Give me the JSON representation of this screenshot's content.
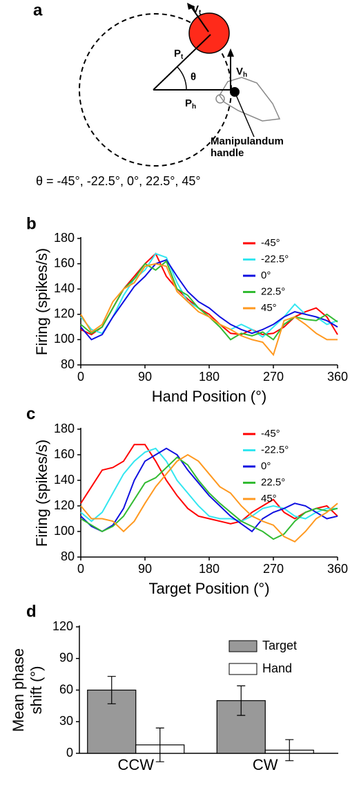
{
  "diagram": {
    "panel_label": "a",
    "vt": {
      "main": "V",
      "sub": "t"
    },
    "pt": {
      "main": "P",
      "sub": "t"
    },
    "theta": "θ",
    "vh": {
      "main": "V",
      "sub": "h"
    },
    "ph": {
      "main": "P",
      "sub": "h"
    },
    "handle_label": [
      "Manipulandum",
      "handle"
    ],
    "caption": "θ = -45°, -22.5°, 0°, 22.5°, 45°"
  },
  "chart_data": [
    {
      "type": "line",
      "panel_label": "b",
      "x_label": "Hand Position (°)",
      "y_label": "Firing (spikes/s)",
      "x": [
        0,
        15,
        30,
        45,
        60,
        75,
        90,
        105,
        120,
        135,
        150,
        165,
        180,
        195,
        210,
        225,
        240,
        255,
        270,
        285,
        300,
        315,
        330,
        345,
        360
      ],
      "xlim": [
        0,
        360
      ],
      "xticks": [
        0,
        90,
        180,
        270,
        360
      ],
      "ylim": [
        80,
        180
      ],
      "yticks": [
        80,
        100,
        120,
        140,
        160,
        180
      ],
      "series": [
        {
          "name": "-45°",
          "color": "#ff0000",
          "values": [
            108,
            104,
            110,
            125,
            140,
            150,
            160,
            168,
            150,
            140,
            132,
            125,
            120,
            112,
            105,
            104,
            108,
            104,
            105,
            110,
            118,
            122,
            125,
            118,
            104
          ]
        },
        {
          "name": "-22.5°",
          "color": "#33e6f0",
          "values": [
            118,
            108,
            105,
            118,
            135,
            148,
            155,
            168,
            165,
            145,
            130,
            125,
            118,
            112,
            108,
            112,
            108,
            102,
            110,
            118,
            128,
            120,
            118,
            112,
            115
          ]
        },
        {
          "name": "0°",
          "color": "#1010e0",
          "values": [
            110,
            100,
            104,
            118,
            130,
            142,
            150,
            160,
            163,
            150,
            138,
            130,
            125,
            118,
            112,
            108,
            105,
            108,
            112,
            118,
            122,
            120,
            118,
            115,
            110
          ]
        },
        {
          "name": "22.5°",
          "color": "#33bb33",
          "values": [
            112,
            105,
            110,
            125,
            140,
            148,
            160,
            155,
            162,
            140,
            135,
            125,
            118,
            110,
            100,
            105,
            103,
            106,
            100,
            112,
            118,
            116,
            115,
            120,
            114
          ]
        },
        {
          "name": "45°",
          "color": "#ff9920",
          "values": [
            120,
            106,
            112,
            130,
            140,
            145,
            158,
            160,
            158,
            138,
            130,
            122,
            118,
            112,
            108,
            103,
            100,
            98,
            88,
            115,
            118,
            112,
            105,
            100,
            100
          ]
        }
      ]
    },
    {
      "type": "line",
      "panel_label": "c",
      "x_label": "Target Position (°)",
      "y_label": "Firing (spikes/s)",
      "x": [
        0,
        15,
        30,
        45,
        60,
        75,
        90,
        105,
        120,
        135,
        150,
        165,
        180,
        195,
        210,
        225,
        240,
        255,
        270,
        285,
        300,
        315,
        330,
        345,
        360
      ],
      "xlim": [
        0,
        360
      ],
      "xticks": [
        0,
        90,
        180,
        270,
        360
      ],
      "ylim": [
        80,
        180
      ],
      "yticks": [
        80,
        100,
        120,
        140,
        160,
        180
      ],
      "series": [
        {
          "name": "-45°",
          "color": "#ff0000",
          "values": [
            122,
            135,
            148,
            150,
            155,
            168,
            168,
            155,
            140,
            128,
            118,
            112,
            110,
            108,
            106,
            108,
            115,
            120,
            125,
            115,
            110,
            115,
            118,
            120,
            112
          ]
        },
        {
          "name": "-22.5°",
          "color": "#33e6f0",
          "values": [
            115,
            108,
            115,
            130,
            145,
            155,
            162,
            165,
            155,
            140,
            130,
            120,
            112,
            110,
            110,
            108,
            112,
            118,
            120,
            118,
            112,
            110,
            115,
            118,
            118
          ]
        },
        {
          "name": "0°",
          "color": "#1010e0",
          "values": [
            112,
            104,
            100,
            105,
            118,
            140,
            155,
            160,
            165,
            160,
            148,
            138,
            128,
            120,
            112,
            106,
            100,
            110,
            115,
            118,
            122,
            120,
            115,
            110,
            112
          ]
        },
        {
          "name": "22.5°",
          "color": "#33bb33",
          "values": [
            110,
            105,
            100,
            104,
            112,
            125,
            138,
            142,
            150,
            158,
            152,
            140,
            130,
            122,
            115,
            108,
            104,
            100,
            94,
            98,
            108,
            115,
            118,
            116,
            118
          ]
        },
        {
          "name": "45°",
          "color": "#ff9920",
          "values": [
            120,
            110,
            110,
            108,
            100,
            108,
            122,
            135,
            145,
            155,
            160,
            155,
            145,
            135,
            130,
            120,
            112,
            108,
            105,
            96,
            92,
            100,
            110,
            115,
            122
          ]
        }
      ]
    },
    {
      "type": "bar",
      "panel_label": "d",
      "y_label": [
        "Mean phase",
        "shift (°)"
      ],
      "categories": [
        "CCW",
        "CW"
      ],
      "ylim": [
        0,
        120
      ],
      "yticks": [
        0,
        30,
        60,
        90,
        120
      ],
      "series": [
        {
          "name": "Target",
          "color": "#999999",
          "values": [
            60,
            50
          ],
          "errors": [
            13,
            14
          ]
        },
        {
          "name": "Hand",
          "color": "#ffffff",
          "values": [
            8,
            3
          ],
          "errors": [
            16,
            10
          ]
        }
      ]
    }
  ]
}
